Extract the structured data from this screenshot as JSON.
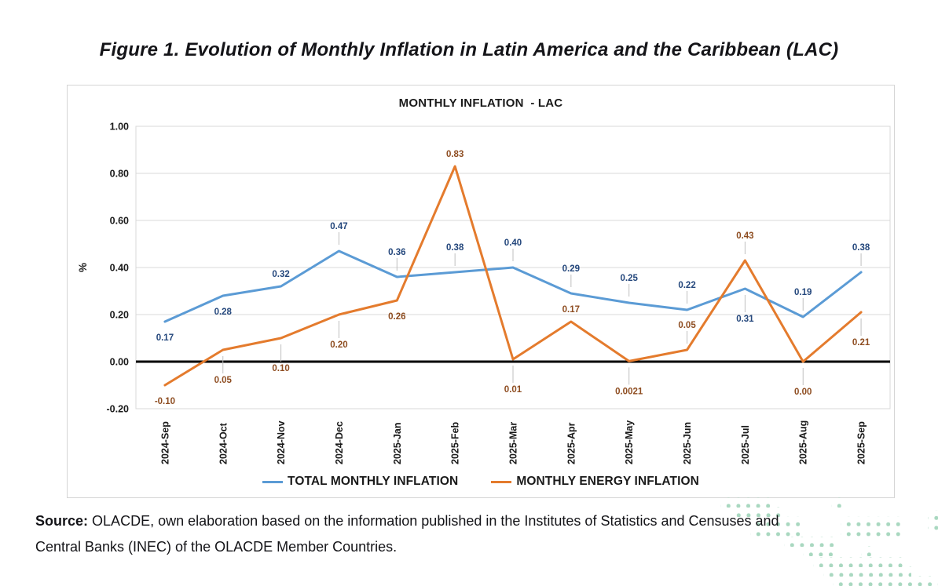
{
  "figure_title": "Figure 1. Evolution of Monthly Inflation in Latin America and the Caribbean (LAC)",
  "chart_data": {
    "type": "line",
    "title": "MONTHLY INFLATION  - LAC",
    "ylabel": "%",
    "ylim": [
      -0.2,
      1.0
    ],
    "ytick_step": 0.2,
    "y_ticks": [
      "1.00",
      "0.80",
      "0.60",
      "0.40",
      "0.20",
      "0.00",
      "-0.20"
    ],
    "grid": true,
    "legend_position": "bottom",
    "categories": [
      "2024-Sep",
      "2024-Oct",
      "2024-Nov",
      "2024-Dec",
      "2025-Jan",
      "2025-Feb",
      "2025-Mar",
      "2025-Apr",
      "2025-May",
      "2025-Jun",
      "2025-Jul",
      "2025-Aug",
      "2025-Sep"
    ],
    "series": [
      {
        "name": "TOTAL MONTHLY INFLATION",
        "color": "#5B9BD5",
        "label_color": "#24477C",
        "values": [
          0.17,
          0.28,
          0.32,
          0.47,
          0.36,
          0.38,
          0.4,
          0.29,
          0.25,
          0.22,
          0.31,
          0.19,
          0.38
        ],
        "labels": [
          "0.17",
          "0.28",
          "0.32",
          "0.47",
          "0.36",
          "0.38",
          "0.40",
          "0.29",
          "0.25",
          "0.22",
          "0.31",
          "0.19",
          "0.38"
        ],
        "label_sides": [
          "below",
          "below",
          "above",
          "above",
          "above",
          "above",
          "above",
          "above",
          "above",
          "above",
          "below",
          "above",
          "above"
        ],
        "label_leaders": [
          false,
          false,
          false,
          true,
          true,
          true,
          true,
          true,
          true,
          true,
          true,
          true,
          true
        ]
      },
      {
        "name": "MONTHLY ENERGY INFLATION",
        "color": "#E47B2D",
        "label_color": "#8E4D21",
        "values": [
          -0.1,
          0.05,
          0.1,
          0.2,
          0.26,
          0.83,
          0.01,
          0.17,
          0.0021,
          0.05,
          0.43,
          0.0,
          0.21
        ],
        "labels": [
          "-0.10",
          "0.05",
          "0.10",
          "0.20",
          "0.26",
          "0.83",
          "0.01",
          "0.17",
          "0.0021",
          "0.05",
          "0.43",
          "0.00",
          "0.21"
        ],
        "label_sides": [
          "below",
          "below",
          "below",
          "below",
          "below",
          "above",
          "below",
          "above",
          "below",
          "above",
          "above",
          "below",
          "below"
        ],
        "label_leaders": [
          false,
          true,
          true,
          true,
          false,
          false,
          true,
          false,
          true,
          true,
          true,
          true,
          true
        ]
      }
    ]
  },
  "source": {
    "label": "Source:",
    "line1": "OLACDE, own elaboration based on the information published in the Institutes of Statistics and Censuses and",
    "line2": "Central Banks (INEC) of the OLACDE Member Countries."
  },
  "colors": {
    "panel_border": "#d5d5d5",
    "gridline": "#d9d9d9",
    "zero_line": "#000000",
    "leader_line": "#bfbfbf",
    "axis_text": "#1a1a1a",
    "dots_decoration": "#a9d8c0"
  }
}
